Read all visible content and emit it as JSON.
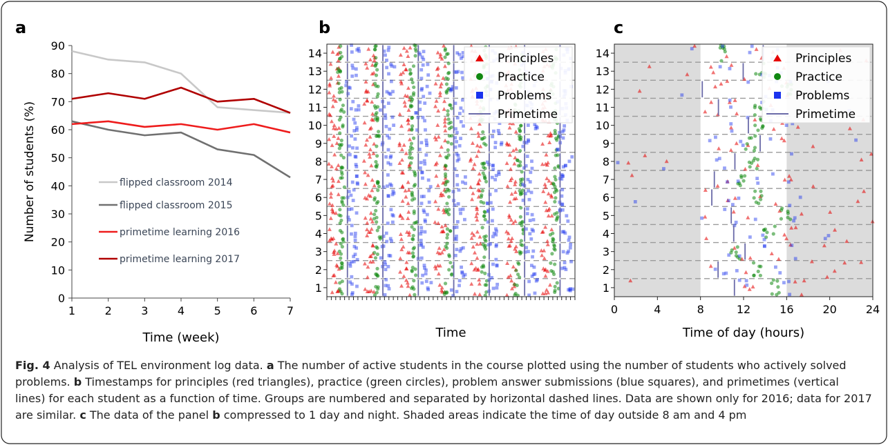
{
  "figure": {
    "caption": {
      "fig_label": "Fig. 4",
      "title": " Analysis of TEL environment log data. ",
      "a_letter": "a",
      "a_text": " The number of active students in the course plotted using the number of students who actively solved problems. ",
      "b_letter": "b",
      "b_text": " Timestamps for principles (red triangles), practice (green circles), problem answer submissions (blue squares), and primetimes (vertical lines) for each student as a function of time. Groups are numbered and separated by horizontal dashed lines. Data are shown only for 2016; data for 2017 are similar. ",
      "c_letter": "c",
      "c_text": " The data of the panel ",
      "c_ref": "b",
      "c_text2": " compressed to 1 day and night. Shaded areas indicate the time of day outside 8 am and 4 pm"
    },
    "colors": {
      "flipped2014": "#c8c8c8",
      "flipped2015": "#707070",
      "prime2016": "#ee1c1c",
      "prime2017": "#b00000",
      "principles": "#e60000",
      "practice": "#118811",
      "problems": "#1a33ee",
      "primetime": "#6a6aa8",
      "shade": "#dcdcdc"
    }
  },
  "chart_data": [
    {
      "panel": "a",
      "type": "line",
      "xlabel": "Time (week)",
      "ylabel": "Number of students (%)",
      "xlim": [
        1,
        7
      ],
      "ylim": [
        0,
        90
      ],
      "x": [
        1,
        2,
        3,
        4,
        5,
        6,
        7
      ],
      "xticks": [
        "1",
        "2",
        "3",
        "4",
        "5",
        "6",
        "7"
      ],
      "yticks": [
        "0",
        "10",
        "20",
        "30",
        "40",
        "50",
        "60",
        "70",
        "80",
        "90"
      ],
      "series": [
        {
          "name": "flipped classroom 2014",
          "values": [
            88,
            85,
            84,
            80,
            68,
            67,
            66
          ]
        },
        {
          "name": "flipped classroom 2015",
          "values": [
            63,
            60,
            58,
            59,
            53,
            51,
            43
          ]
        },
        {
          "name": "primetime learning 2016",
          "values": [
            62,
            63,
            61,
            62,
            60,
            62,
            59
          ]
        },
        {
          "name": "primetime learning 2017",
          "values": [
            71,
            73,
            71,
            75,
            70,
            71,
            66
          ]
        }
      ],
      "legend": "center-left"
    },
    {
      "panel": "b",
      "type": "scatter",
      "xlabel": "Time",
      "ylabel": "",
      "ylim": [
        0.5,
        14.5
      ],
      "yticks": [
        "1",
        "2",
        "3",
        "4",
        "5",
        "6",
        "7",
        "8",
        "9",
        "10",
        "11",
        "12",
        "13",
        "14"
      ],
      "legend_entries": [
        "Principles",
        "Practice",
        "Problems",
        "Primetime"
      ],
      "legend": "top-right",
      "grid": "horizontal dashed separators between groups"
    },
    {
      "panel": "c",
      "type": "scatter",
      "xlabel": "Time of day (hours)",
      "ylabel": "",
      "xlim": [
        0,
        24
      ],
      "ylim": [
        0.5,
        14.5
      ],
      "xticks": [
        "0",
        "4",
        "8",
        "12",
        "16",
        "20",
        "24"
      ],
      "yticks": [
        "1",
        "2",
        "3",
        "4",
        "5",
        "6",
        "7",
        "8",
        "9",
        "10",
        "11",
        "12",
        "13",
        "14"
      ],
      "legend_entries": [
        "Principles",
        "Practice",
        "Problems",
        "Primetime"
      ],
      "legend": "top-right",
      "shaded_hours": [
        [
          0,
          8
        ],
        [
          16,
          24
        ]
      ]
    }
  ]
}
